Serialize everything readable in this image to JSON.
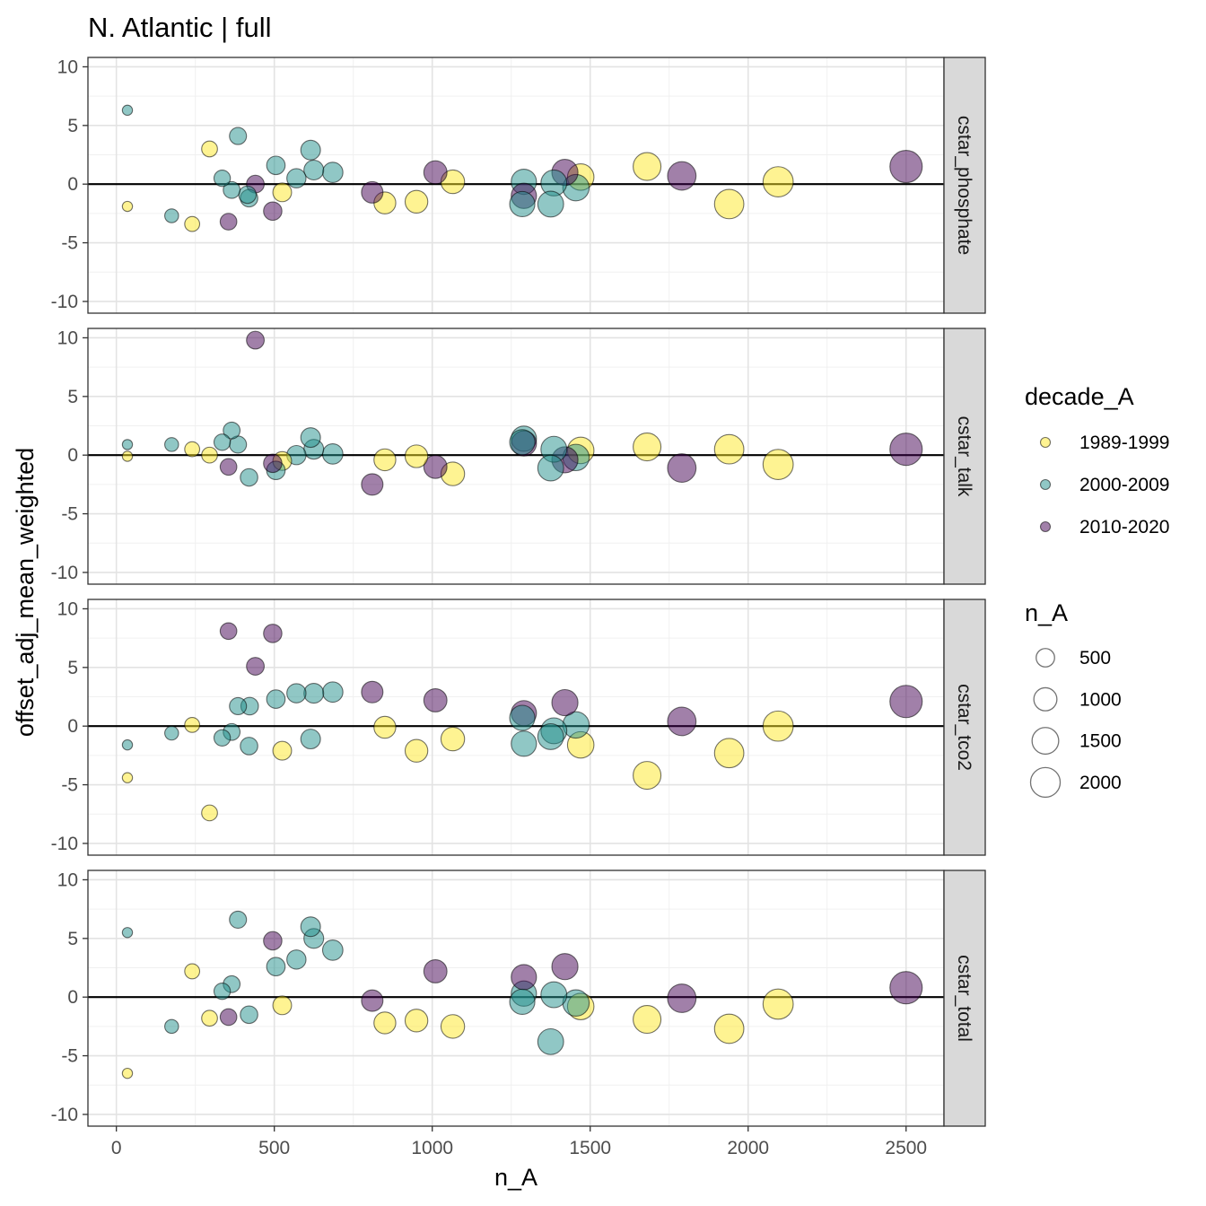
{
  "chart_data": {
    "type": "scatter",
    "title": "N. Atlantic | full",
    "xlabel": "n_A",
    "ylabel": "offset_adj_mean_weighted",
    "xlim": [
      -90,
      2620
    ],
    "ylim": [
      -11,
      10.8
    ],
    "x_ticks": [
      0,
      500,
      1000,
      1500,
      2000,
      2500
    ],
    "x_tick_labels": [
      "0",
      "500",
      "1000",
      "1500",
      "2000",
      "2500"
    ],
    "y_ticks": [
      -10,
      -5,
      0,
      5,
      10
    ],
    "y_tick_labels": [
      "-10",
      "-5",
      "0",
      "5",
      "10"
    ],
    "grid": true,
    "hline_y": 0,
    "legend_color": {
      "title": "decade_A",
      "position": "right",
      "entries": [
        {
          "label": "1989-1999",
          "color": "#FDE725"
        },
        {
          "label": "2000-2009",
          "color": "#21908C"
        },
        {
          "label": "2010-2020",
          "color": "#440154"
        }
      ]
    },
    "legend_size": {
      "title": "n_A",
      "entries": [
        {
          "label": "500",
          "value": 500
        },
        {
          "label": "1000",
          "value": 1000
        },
        {
          "label": "1500",
          "value": 1500
        },
        {
          "label": "2000",
          "value": 2000
        }
      ]
    },
    "panels": [
      {
        "label": "cstar_phosphate",
        "points": [
          {
            "x": 35,
            "y": 6.3,
            "g": "2000-2009"
          },
          {
            "x": 35,
            "y": -1.9,
            "g": "1989-1999"
          },
          {
            "x": 175,
            "y": -2.7,
            "g": "2000-2009"
          },
          {
            "x": 240,
            "y": -3.4,
            "g": "1989-1999"
          },
          {
            "x": 295,
            "y": 3.0,
            "g": "1989-1999"
          },
          {
            "x": 335,
            "y": 0.5,
            "g": "2000-2009"
          },
          {
            "x": 355,
            "y": -3.2,
            "g": "2010-2020"
          },
          {
            "x": 365,
            "y": -0.5,
            "g": "2000-2009"
          },
          {
            "x": 385,
            "y": 4.1,
            "g": "2000-2009"
          },
          {
            "x": 415,
            "y": -0.9,
            "g": "2000-2009"
          },
          {
            "x": 420,
            "y": -1.2,
            "g": "2000-2009"
          },
          {
            "x": 440,
            "y": 0.0,
            "g": "2010-2020"
          },
          {
            "x": 495,
            "y": -2.3,
            "g": "2010-2020"
          },
          {
            "x": 505,
            "y": 1.6,
            "g": "2000-2009"
          },
          {
            "x": 525,
            "y": -0.7,
            "g": "1989-1999"
          },
          {
            "x": 570,
            "y": 0.5,
            "g": "2000-2009"
          },
          {
            "x": 615,
            "y": 2.9,
            "g": "2000-2009"
          },
          {
            "x": 625,
            "y": 1.2,
            "g": "2000-2009"
          },
          {
            "x": 685,
            "y": 1.0,
            "g": "2000-2009"
          },
          {
            "x": 810,
            "y": -0.7,
            "g": "2010-2020"
          },
          {
            "x": 850,
            "y": -1.6,
            "g": "1989-1999"
          },
          {
            "x": 950,
            "y": -1.5,
            "g": "1989-1999"
          },
          {
            "x": 1010,
            "y": 1.0,
            "g": "2010-2020"
          },
          {
            "x": 1065,
            "y": 0.2,
            "g": "1989-1999"
          },
          {
            "x": 1285,
            "y": -1.7,
            "g": "2000-2009"
          },
          {
            "x": 1290,
            "y": 0.2,
            "g": "2000-2009"
          },
          {
            "x": 1290,
            "y": -1.0,
            "g": "2010-2020"
          },
          {
            "x": 1375,
            "y": -1.7,
            "g": "2000-2009"
          },
          {
            "x": 1385,
            "y": 0.1,
            "g": "2000-2009"
          },
          {
            "x": 1420,
            "y": 1.0,
            "g": "2010-2020"
          },
          {
            "x": 1455,
            "y": -0.3,
            "g": "2000-2009"
          },
          {
            "x": 1470,
            "y": 0.6,
            "g": "1989-1999"
          },
          {
            "x": 1680,
            "y": 1.5,
            "g": "1989-1999"
          },
          {
            "x": 1790,
            "y": 0.7,
            "g": "2010-2020"
          },
          {
            "x": 1940,
            "y": -1.7,
            "g": "1989-1999"
          },
          {
            "x": 2095,
            "y": 0.2,
            "g": "1989-1999"
          },
          {
            "x": 2500,
            "y": 1.5,
            "g": "2010-2020"
          }
        ]
      },
      {
        "label": "cstar_talk",
        "points": [
          {
            "x": 35,
            "y": 0.9,
            "g": "2000-2009"
          },
          {
            "x": 35,
            "y": -0.1,
            "g": "1989-1999"
          },
          {
            "x": 175,
            "y": 0.9,
            "g": "2000-2009"
          },
          {
            "x": 240,
            "y": 0.5,
            "g": "1989-1999"
          },
          {
            "x": 295,
            "y": 0.0,
            "g": "1989-1999"
          },
          {
            "x": 335,
            "y": 1.1,
            "g": "2000-2009"
          },
          {
            "x": 355,
            "y": -1.0,
            "g": "2010-2020"
          },
          {
            "x": 365,
            "y": 2.1,
            "g": "2000-2009"
          },
          {
            "x": 385,
            "y": 0.9,
            "g": "2000-2009"
          },
          {
            "x": 420,
            "y": -1.9,
            "g": "2000-2009"
          },
          {
            "x": 440,
            "y": 9.8,
            "g": "2010-2020"
          },
          {
            "x": 495,
            "y": -0.7,
            "g": "2010-2020"
          },
          {
            "x": 505,
            "y": -1.3,
            "g": "2000-2009"
          },
          {
            "x": 525,
            "y": -0.5,
            "g": "1989-1999"
          },
          {
            "x": 570,
            "y": 0.0,
            "g": "2000-2009"
          },
          {
            "x": 615,
            "y": 1.5,
            "g": "2000-2009"
          },
          {
            "x": 625,
            "y": 0.5,
            "g": "2000-2009"
          },
          {
            "x": 685,
            "y": 0.1,
            "g": "2000-2009"
          },
          {
            "x": 810,
            "y": -2.5,
            "g": "2010-2020"
          },
          {
            "x": 850,
            "y": -0.4,
            "g": "1989-1999"
          },
          {
            "x": 950,
            "y": -0.1,
            "g": "1989-1999"
          },
          {
            "x": 1010,
            "y": -1.0,
            "g": "2010-2020"
          },
          {
            "x": 1065,
            "y": -1.6,
            "g": "1989-1999"
          },
          {
            "x": 1285,
            "y": 1.1,
            "g": "2000-2009"
          },
          {
            "x": 1290,
            "y": 1.4,
            "g": "2000-2009"
          },
          {
            "x": 1290,
            "y": 1.0,
            "g": "2010-2020"
          },
          {
            "x": 1375,
            "y": -1.1,
            "g": "2000-2009"
          },
          {
            "x": 1385,
            "y": 0.5,
            "g": "2000-2009"
          },
          {
            "x": 1420,
            "y": -0.4,
            "g": "2010-2020"
          },
          {
            "x": 1455,
            "y": -0.2,
            "g": "2000-2009"
          },
          {
            "x": 1470,
            "y": 0.4,
            "g": "1989-1999"
          },
          {
            "x": 1680,
            "y": 0.7,
            "g": "1989-1999"
          },
          {
            "x": 1790,
            "y": -1.1,
            "g": "2010-2020"
          },
          {
            "x": 1940,
            "y": 0.5,
            "g": "1989-1999"
          },
          {
            "x": 2095,
            "y": -0.8,
            "g": "1989-1999"
          },
          {
            "x": 2500,
            "y": 0.5,
            "g": "2010-2020"
          }
        ]
      },
      {
        "label": "cstar_tco2",
        "points": [
          {
            "x": 35,
            "y": -1.6,
            "g": "2000-2009"
          },
          {
            "x": 35,
            "y": -4.4,
            "g": "1989-1999"
          },
          {
            "x": 175,
            "y": -0.6,
            "g": "2000-2009"
          },
          {
            "x": 240,
            "y": 0.1,
            "g": "1989-1999"
          },
          {
            "x": 295,
            "y": -7.4,
            "g": "1989-1999"
          },
          {
            "x": 335,
            "y": -1.0,
            "g": "2000-2009"
          },
          {
            "x": 355,
            "y": 8.1,
            "g": "2010-2020"
          },
          {
            "x": 365,
            "y": -0.5,
            "g": "2000-2009"
          },
          {
            "x": 385,
            "y": 1.7,
            "g": "2000-2009"
          },
          {
            "x": 420,
            "y": -1.7,
            "g": "2000-2009"
          },
          {
            "x": 422,
            "y": 1.7,
            "g": "2000-2009"
          },
          {
            "x": 440,
            "y": 5.1,
            "g": "2010-2020"
          },
          {
            "x": 495,
            "y": 7.9,
            "g": "2010-2020"
          },
          {
            "x": 505,
            "y": 2.3,
            "g": "2000-2009"
          },
          {
            "x": 525,
            "y": -2.1,
            "g": "1989-1999"
          },
          {
            "x": 570,
            "y": 2.8,
            "g": "2000-2009"
          },
          {
            "x": 615,
            "y": -1.1,
            "g": "2000-2009"
          },
          {
            "x": 625,
            "y": 2.8,
            "g": "2000-2009"
          },
          {
            "x": 685,
            "y": 2.9,
            "g": "2000-2009"
          },
          {
            "x": 810,
            "y": 2.9,
            "g": "2010-2020"
          },
          {
            "x": 850,
            "y": -0.1,
            "g": "1989-1999"
          },
          {
            "x": 950,
            "y": -2.1,
            "g": "1989-1999"
          },
          {
            "x": 1010,
            "y": 2.2,
            "g": "2010-2020"
          },
          {
            "x": 1065,
            "y": -1.1,
            "g": "1989-1999"
          },
          {
            "x": 1285,
            "y": 0.7,
            "g": "2000-2009"
          },
          {
            "x": 1290,
            "y": -1.5,
            "g": "2000-2009"
          },
          {
            "x": 1290,
            "y": 1.1,
            "g": "2010-2020"
          },
          {
            "x": 1375,
            "y": -0.9,
            "g": "2000-2009"
          },
          {
            "x": 1385,
            "y": -0.4,
            "g": "2000-2009"
          },
          {
            "x": 1420,
            "y": 2.0,
            "g": "2010-2020"
          },
          {
            "x": 1455,
            "y": 0.1,
            "g": "2000-2009"
          },
          {
            "x": 1470,
            "y": -1.6,
            "g": "1989-1999"
          },
          {
            "x": 1680,
            "y": -4.2,
            "g": "1989-1999"
          },
          {
            "x": 1790,
            "y": 0.4,
            "g": "2010-2020"
          },
          {
            "x": 1940,
            "y": -2.3,
            "g": "1989-1999"
          },
          {
            "x": 2095,
            "y": 0.0,
            "g": "1989-1999"
          },
          {
            "x": 2500,
            "y": 2.1,
            "g": "2010-2020"
          }
        ]
      },
      {
        "label": "cstar_total",
        "points": [
          {
            "x": 35,
            "y": 5.5,
            "g": "2000-2009"
          },
          {
            "x": 35,
            "y": -6.5,
            "g": "1989-1999"
          },
          {
            "x": 175,
            "y": -2.5,
            "g": "2000-2009"
          },
          {
            "x": 240,
            "y": 2.2,
            "g": "1989-1999"
          },
          {
            "x": 295,
            "y": -1.8,
            "g": "1989-1999"
          },
          {
            "x": 335,
            "y": 0.5,
            "g": "2000-2009"
          },
          {
            "x": 355,
            "y": -1.7,
            "g": "2010-2020"
          },
          {
            "x": 365,
            "y": 1.1,
            "g": "2000-2009"
          },
          {
            "x": 385,
            "y": 6.6,
            "g": "2000-2009"
          },
          {
            "x": 420,
            "y": -1.5,
            "g": "2000-2009"
          },
          {
            "x": 495,
            "y": 4.8,
            "g": "2010-2020"
          },
          {
            "x": 505,
            "y": 2.6,
            "g": "2000-2009"
          },
          {
            "x": 525,
            "y": -0.7,
            "g": "1989-1999"
          },
          {
            "x": 570,
            "y": 3.2,
            "g": "2000-2009"
          },
          {
            "x": 615,
            "y": 6.0,
            "g": "2000-2009"
          },
          {
            "x": 625,
            "y": 5.0,
            "g": "2000-2009"
          },
          {
            "x": 685,
            "y": 4.0,
            "g": "2000-2009"
          },
          {
            "x": 810,
            "y": -0.3,
            "g": "2010-2020"
          },
          {
            "x": 850,
            "y": -2.2,
            "g": "1989-1999"
          },
          {
            "x": 950,
            "y": -2.0,
            "g": "1989-1999"
          },
          {
            "x": 1010,
            "y": 2.2,
            "g": "2010-2020"
          },
          {
            "x": 1065,
            "y": -2.5,
            "g": "1989-1999"
          },
          {
            "x": 1285,
            "y": -0.4,
            "g": "2000-2009"
          },
          {
            "x": 1290,
            "y": 0.3,
            "g": "2000-2009"
          },
          {
            "x": 1290,
            "y": 1.7,
            "g": "2010-2020"
          },
          {
            "x": 1375,
            "y": -3.8,
            "g": "2000-2009"
          },
          {
            "x": 1385,
            "y": 0.2,
            "g": "2000-2009"
          },
          {
            "x": 1420,
            "y": 2.6,
            "g": "2010-2020"
          },
          {
            "x": 1455,
            "y": -0.5,
            "g": "2000-2009"
          },
          {
            "x": 1470,
            "y": -0.8,
            "g": "1989-1999"
          },
          {
            "x": 1680,
            "y": -1.9,
            "g": "1989-1999"
          },
          {
            "x": 1790,
            "y": -0.1,
            "g": "2010-2020"
          },
          {
            "x": 1940,
            "y": -2.7,
            "g": "1989-1999"
          },
          {
            "x": 2095,
            "y": -0.6,
            "g": "1989-1999"
          },
          {
            "x": 2500,
            "y": 0.8,
            "g": "2010-2020"
          }
        ]
      }
    ]
  }
}
